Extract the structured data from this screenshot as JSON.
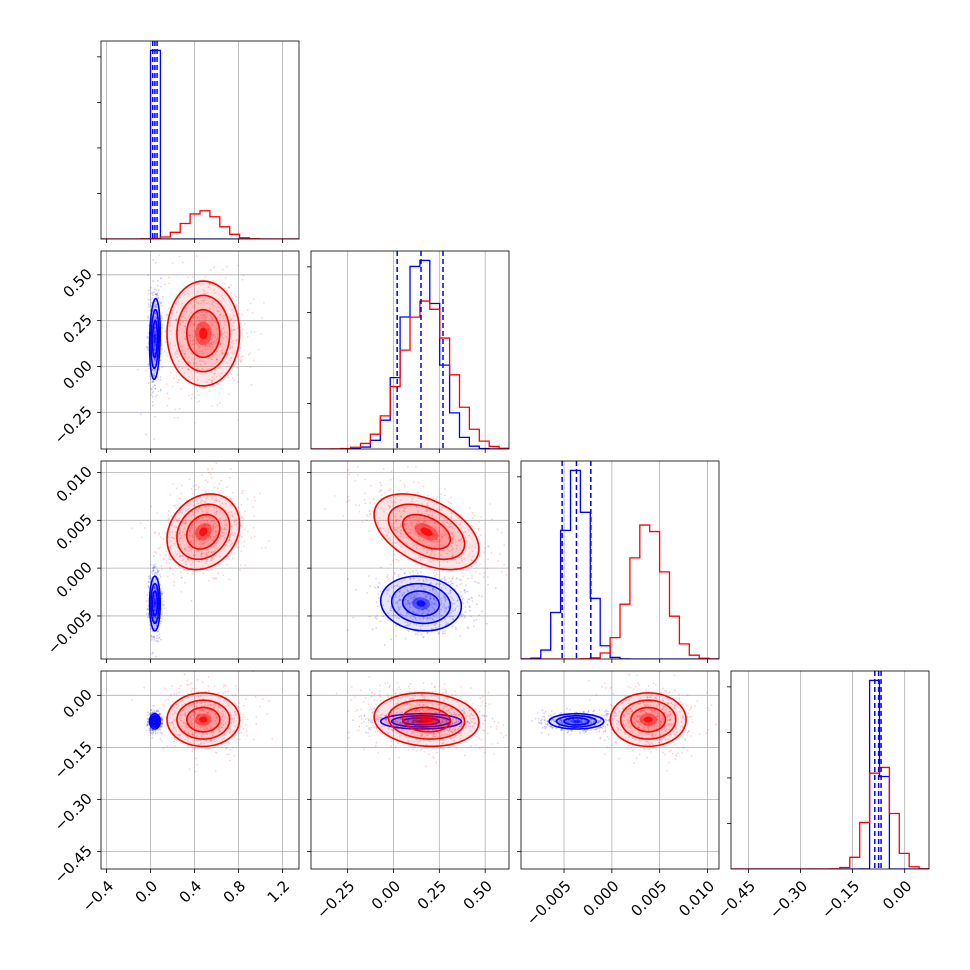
{
  "colors": {
    "blue": "#0000ff",
    "red": "#ff0000",
    "grid": "#b0b0b0"
  },
  "chart_data": {
    "type": "corner",
    "title": "",
    "grid": true,
    "series": [
      {
        "color": "#0000ff",
        "params": [
          {
            "mean": 0.04,
            "std": 0.022
          },
          {
            "mean": 0.15,
            "std": 0.1
          },
          {
            "mean": -0.0037,
            "std": 0.0013
          },
          {
            "mean": -0.075,
            "std": 0.01
          }
        ],
        "corr": [
          [
            0,
            1,
            0.15
          ],
          [
            0,
            2,
            0.0
          ],
          [
            1,
            2,
            -0.1
          ],
          [
            0,
            3,
            0.0
          ],
          [
            1,
            3,
            0.0
          ],
          [
            2,
            3,
            0.0
          ]
        ],
        "quantiles": [
          [
            0.02,
            0.04,
            0.06
          ],
          [
            0.02,
            0.15,
            0.27
          ],
          [
            -0.0052,
            -0.0037,
            -0.0022
          ],
          [
            -0.086,
            -0.075,
            -0.068
          ]
        ]
      },
      {
        "color": "#ff0000",
        "params": [
          {
            "mean": 0.48,
            "std": 0.15
          },
          {
            "mean": 0.18,
            "std": 0.13
          },
          {
            "mean": 0.0038,
            "std": 0.0018
          },
          {
            "mean": -0.07,
            "std": 0.035
          }
        ],
        "corr": [
          [
            0,
            1,
            0.0
          ],
          [
            0,
            2,
            0.2
          ],
          [
            1,
            2,
            -0.45
          ],
          [
            0,
            3,
            0.0
          ],
          [
            1,
            3,
            -0.1
          ],
          [
            2,
            3,
            0.0
          ]
        ],
        "quantiles": []
      }
    ],
    "axes": [
      {
        "range": [
          -0.45,
          1.35
        ],
        "ticks": [
          -0.4,
          0.0,
          0.4,
          0.8,
          1.2
        ],
        "tick_labels": [
          "−0.4",
          "0.0",
          "0.4",
          "0.8",
          "1.2"
        ]
      },
      {
        "range": [
          -0.45,
          0.63
        ],
        "ticks": [
          -0.25,
          0.0,
          0.25,
          0.5
        ],
        "tick_labels": [
          "−0.25",
          "0.00",
          "0.25",
          "0.50"
        ]
      },
      {
        "range": [
          -0.0095,
          0.0112
        ],
        "ticks": [
          -0.005,
          0.0,
          0.005,
          0.01
        ],
        "tick_labels": [
          "−0.005",
          "0.000",
          "0.005",
          "0.010"
        ]
      },
      {
        "range": [
          -0.5,
          0.07
        ],
        "ticks": [
          -0.45,
          -0.3,
          -0.15,
          0.0
        ],
        "tick_labels": [
          "−0.45",
          "−0.30",
          "−0.15",
          "0.00"
        ]
      }
    ],
    "xlabels": [
      "",
      "",
      "",
      ""
    ],
    "ylabels": [
      "",
      "",
      "",
      ""
    ]
  }
}
